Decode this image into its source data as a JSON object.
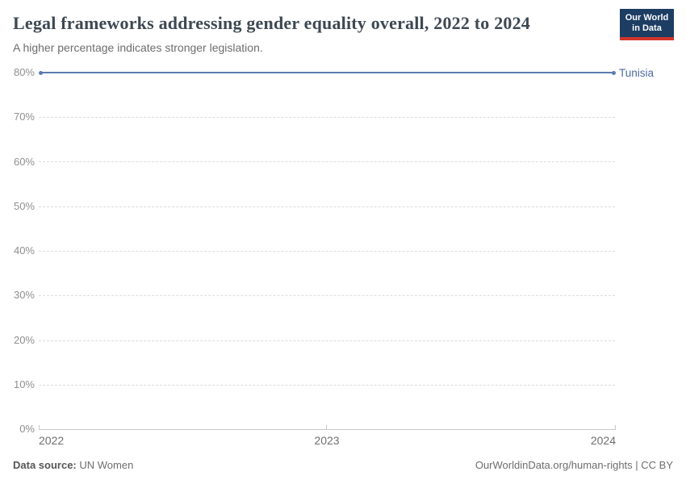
{
  "header": {
    "title": "Legal frameworks addressing gender equality overall, 2022 to 2024",
    "subtitle": "A higher percentage indicates stronger legislation.",
    "logo_line1": "Our World",
    "logo_line2": "in Data",
    "logo_colors": {
      "navy": "#1d3d63",
      "red": "#d2352c"
    }
  },
  "chart_data": {
    "type": "line",
    "title": "Legal frameworks addressing gender equality overall, 2022 to 2024",
    "subtitle": "A higher percentage indicates stronger legislation.",
    "x": [
      2022,
      2023,
      2024
    ],
    "series": [
      {
        "name": "Tunisia",
        "values": [
          80,
          80,
          80
        ],
        "unit": "%",
        "color": "#5b7cae",
        "label_color": "#4c6a9c"
      }
    ],
    "x_ticks": [
      "2022",
      "2023",
      "2024"
    ],
    "y_ticks": [
      "80%",
      "70%",
      "60%",
      "50%",
      "40%",
      "30%",
      "20%",
      "10%",
      "0%"
    ],
    "ylim": [
      0,
      80
    ],
    "xlabel": "",
    "ylabel": "",
    "grid": "horizontal-dashed",
    "legend_position": "right-of-line-end"
  },
  "footer": {
    "source_label": "Data source:",
    "source_value": "UN Women",
    "right_text": "OurWorldinData.org/human-rights | CC BY"
  }
}
